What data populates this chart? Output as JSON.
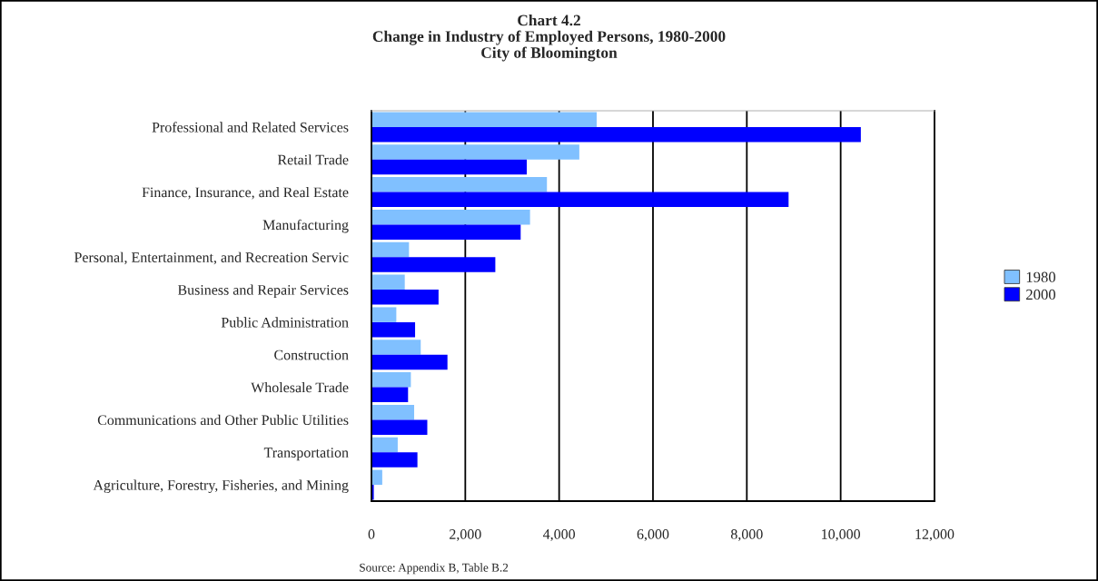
{
  "chart_data": {
    "type": "bar",
    "orientation": "horizontal",
    "title": "Chart 4.2\nChange in Industry of Employed Persons, 1980-2000",
    "subtitle": "City of Bloomington",
    "categories": [
      "Professional and Related Services",
      "Retail Trade",
      "Finance, Insurance, and Real Estate",
      "Manufacturing",
      "Personal, Entertainment, and Recreation Servic",
      "Business and Repair Services",
      "Public Administration",
      "Construction",
      "Wholesale Trade",
      "Communications and Other Public Utilities",
      "Transportation",
      "Agriculture, Forestry, Fisheries, and Mining"
    ],
    "series": [
      {
        "name": "1980",
        "color": "#80c0ff",
        "values": [
          4800,
          4430,
          3740,
          3380,
          800,
          710,
          530,
          1050,
          840,
          910,
          560,
          230
        ]
      },
      {
        "name": "2000",
        "color": "#0000ff",
        "values": [
          10430,
          3310,
          8890,
          3180,
          2640,
          1430,
          930,
          1620,
          780,
          1190,
          980,
          50
        ]
      }
    ],
    "xlim": [
      0,
      12000
    ],
    "xticks": [
      0,
      {
        "value": 2000,
        "label": "2,000"
      },
      {
        "value": 4000,
        "label": "4,000"
      },
      {
        "value": 6000,
        "label": "6,000"
      },
      {
        "value": 8000,
        "label": "8,000"
      },
      {
        "value": 10000,
        "label": "10,000"
      },
      {
        "value": 12000,
        "label": "12,000"
      }
    ],
    "grid": "x",
    "legend": "right",
    "annotations": [
      "Source: Appendix B, Table B.2"
    ]
  }
}
